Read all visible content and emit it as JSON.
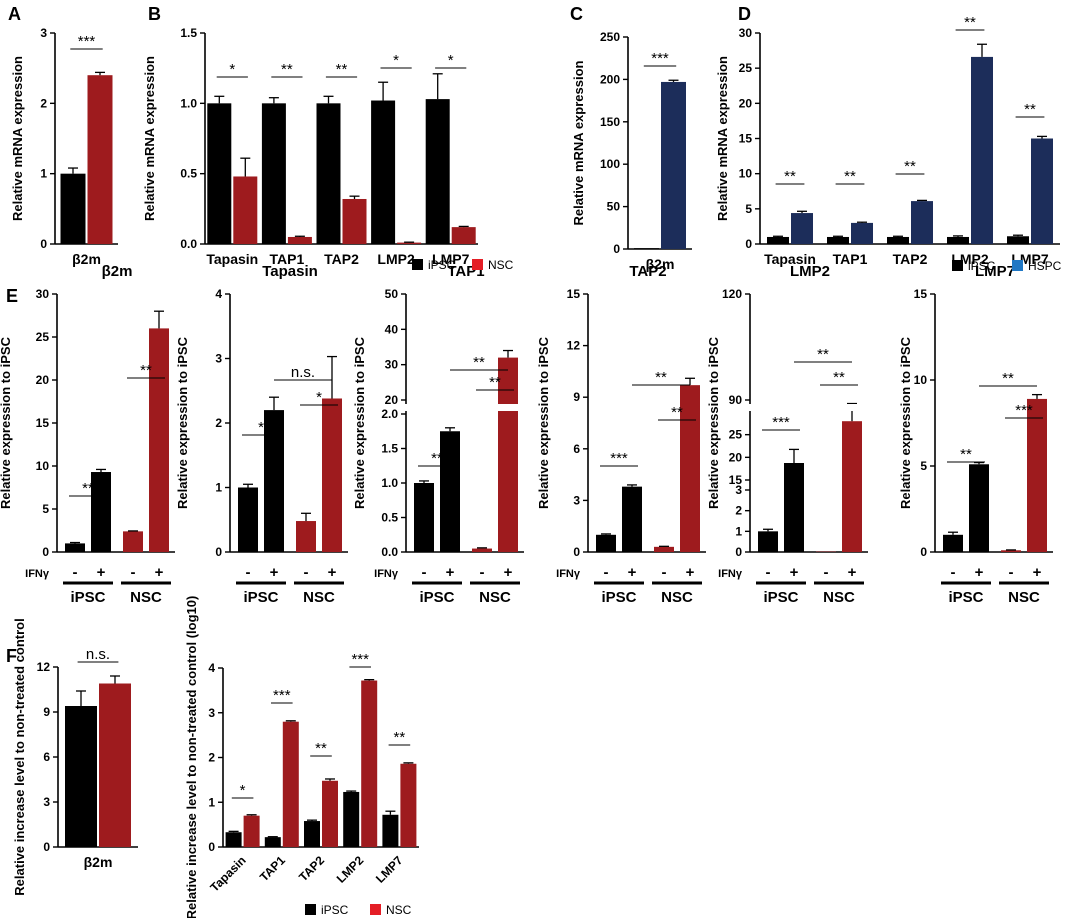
{
  "colors": {
    "ipsc": "#000000",
    "nsc": "#9e1b1e",
    "hspc": "#1c2d5a",
    "legend_nsc": "#e41e26",
    "legend_hspc": "#1f77c4"
  },
  "legend_row1": {
    "ipsc": "iPSC",
    "nsc": "NSC",
    "hspc": "HSPC"
  },
  "legend_row3": {
    "ipsc": "iPSC",
    "nsc": "NSC"
  },
  "chart_data": [
    {
      "id": "A",
      "panel_label": "A",
      "type": "bar",
      "ylabel": "Relative mRNA expression",
      "ylim": [
        0,
        3
      ],
      "yticks": [
        "0",
        "1",
        "2",
        "3"
      ],
      "categories": [
        "β2m"
      ],
      "series": [
        {
          "name": "iPSC",
          "values": [
            1.0
          ],
          "errors": [
            0.08
          ]
        },
        {
          "name": "NSC",
          "values": [
            2.4
          ],
          "errors": [
            0.04
          ]
        }
      ],
      "annotations": [
        "***"
      ]
    },
    {
      "id": "B",
      "panel_label": "B",
      "type": "bar",
      "ylabel": "Relative mRNA expression",
      "ylim": [
        0,
        1.5
      ],
      "yticks": [
        "0.0",
        "0.5",
        "1.0",
        "1.5"
      ],
      "categories": [
        "Tapasin",
        "TAP1",
        "TAP2",
        "LMP2",
        "LMP7"
      ],
      "series": [
        {
          "name": "iPSC",
          "values": [
            1.0,
            1.0,
            1.0,
            1.02,
            1.03
          ],
          "errors": [
            0.05,
            0.04,
            0.05,
            0.13,
            0.18
          ]
        },
        {
          "name": "NSC",
          "values": [
            0.48,
            0.05,
            0.32,
            0.01,
            0.12
          ],
          "errors": [
            0.13,
            0.005,
            0.02,
            0.003,
            0.005
          ]
        }
      ],
      "annotations": [
        "*",
        "**",
        "**",
        "*",
        "*"
      ]
    },
    {
      "id": "C",
      "panel_label": "C",
      "type": "bar",
      "ylabel": "Relative mRNA expression",
      "ylim": [
        0,
        250
      ],
      "yticks": [
        "0",
        "50",
        "100",
        "150",
        "200",
        "250"
      ],
      "categories": [
        "β2m"
      ],
      "series": [
        {
          "name": "iPSC",
          "values": [
            1
          ],
          "errors": [
            0
          ]
        },
        {
          "name": "HSPC",
          "values": [
            197
          ],
          "errors": [
            2
          ]
        }
      ],
      "annotations": [
        "***"
      ]
    },
    {
      "id": "D",
      "panel_label": "D",
      "type": "bar",
      "ylabel": "Relative mRNA expression",
      "ylim": [
        0,
        30
      ],
      "yticks": [
        "0",
        "5",
        "10",
        "15",
        "20",
        "25",
        "30"
      ],
      "categories": [
        "Tapasin",
        "TAP1",
        "TAP2",
        "LMP2",
        "LMP7"
      ],
      "series": [
        {
          "name": "iPSC",
          "values": [
            1,
            1,
            1,
            1,
            1.1
          ],
          "errors": [
            0.1,
            0.1,
            0.1,
            0.15,
            0.15
          ]
        },
        {
          "name": "HSPC",
          "values": [
            4.4,
            3.0,
            6.1,
            26.6,
            15.0
          ],
          "errors": [
            0.25,
            0.1,
            0.1,
            1.8,
            0.3
          ]
        }
      ],
      "annotations": [
        "**",
        "**",
        "**",
        "**",
        "**"
      ]
    },
    {
      "id": "E1",
      "panel_label": "E",
      "title": "β2m",
      "type": "bar",
      "ylabel": "Relative expression to iPSC",
      "ylim": [
        0,
        30
      ],
      "yticks": [
        "0",
        "5",
        "10",
        "15",
        "20",
        "25",
        "30"
      ],
      "ifn_label": "IFNγ",
      "signs": [
        "-",
        "+",
        "-",
        "+"
      ],
      "groups": [
        "iPSC",
        "NSC"
      ],
      "values": [
        1,
        9.3,
        2.4,
        26
      ],
      "errors": [
        0.1,
        0.3,
        0.05,
        2
      ],
      "annotations": [
        {
          "text": "**",
          "from": 0,
          "to": 1
        },
        {
          "text": "**",
          "from": 2,
          "to": 3
        }
      ]
    },
    {
      "id": "E2",
      "title": "Tapasin",
      "type": "bar",
      "ylabel": "Relative expression to iPSC",
      "ylim": [
        0,
        4
      ],
      "yticks": [
        "0",
        "1",
        "2",
        "3",
        "4"
      ],
      "ifn_label": "",
      "signs": [
        "-",
        "+",
        "-",
        "+"
      ],
      "groups": [
        "iPSC",
        "NSC"
      ],
      "values": [
        1,
        2.2,
        0.48,
        2.38
      ],
      "errors": [
        0.05,
        0.2,
        0.12,
        0.65
      ],
      "annotations": [
        {
          "text": "*",
          "from": 0,
          "to": 1
        },
        {
          "text": "*",
          "from": 2,
          "to": 3
        },
        {
          "text": "n.s.",
          "from": 1,
          "to": 3
        }
      ]
    },
    {
      "id": "E3",
      "title": "TAP1",
      "type": "bar",
      "ylabel": "Relative expression to iPSC",
      "broken_axis": true,
      "yticks": [
        "0.0",
        "0.5",
        "1.0",
        "1.5",
        "2.0",
        "20",
        "30",
        "40",
        "50"
      ],
      "ifn_label": "IFNγ",
      "signs": [
        "-",
        "+",
        "-",
        "+"
      ],
      "groups": [
        "iPSC",
        "NSC"
      ],
      "values": [
        1.0,
        1.75,
        0.05,
        32
      ],
      "errors": [
        0.03,
        0.05,
        0.01,
        2
      ],
      "annotations": [
        {
          "text": "**",
          "from": 0,
          "to": 1
        },
        {
          "text": "**",
          "from": 2,
          "to": 3
        },
        {
          "text": "**",
          "from": 1,
          "to": 3
        }
      ]
    },
    {
      "id": "E4",
      "title": "TAP2",
      "type": "bar",
      "ylabel": "Relative expression to iPSC",
      "ylim": [
        0,
        15
      ],
      "yticks": [
        "0",
        "3",
        "6",
        "9",
        "12",
        "15"
      ],
      "ifn_label": "IFNγ",
      "signs": [
        "-",
        "+",
        "-",
        "+"
      ],
      "groups": [
        "iPSC",
        "NSC"
      ],
      "values": [
        1,
        3.8,
        0.3,
        9.7
      ],
      "errors": [
        0.05,
        0.1,
        0.03,
        0.4
      ],
      "annotations": [
        {
          "text": "***",
          "from": 0,
          "to": 1
        },
        {
          "text": "**",
          "from": 2,
          "to": 3
        },
        {
          "text": "**",
          "from": 1,
          "to": 3
        }
      ]
    },
    {
      "id": "E5",
      "title": "LMP2",
      "type": "bar",
      "ylabel": "Relative expression to iPSC",
      "broken_axis": true,
      "yticks": [
        "0",
        "1",
        "2",
        "3",
        "15",
        "20",
        "25",
        "90",
        "120"
      ],
      "ifn_label": "IFNγ",
      "signs": [
        "-",
        "+",
        "-",
        "+"
      ],
      "groups": [
        "iPSC",
        "NSC"
      ],
      "values": [
        1,
        17.5,
        0.02,
        84
      ],
      "errors": [
        0.1,
        2,
        0,
        5
      ],
      "annotations": [
        {
          "text": "***",
          "from": 0,
          "to": 1
        },
        {
          "text": "**",
          "from": 2,
          "to": 3
        },
        {
          "text": "**",
          "from": 1,
          "to": 3
        }
      ]
    },
    {
      "id": "E6",
      "title": "LMP7",
      "type": "bar",
      "ylabel": "Relative expression to iPSC",
      "ylim": [
        0,
        15
      ],
      "yticks": [
        "0",
        "5",
        "10",
        "15"
      ],
      "ifn_label": "",
      "signs": [
        "-",
        "+",
        "-",
        "+"
      ],
      "groups": [
        "iPSC",
        "NSC"
      ],
      "values": [
        1,
        5.1,
        0.1,
        8.9
      ],
      "errors": [
        0.15,
        0.1,
        0.02,
        0.25
      ],
      "annotations": [
        {
          "text": "**",
          "from": 0,
          "to": 1
        },
        {
          "text": "***",
          "from": 2,
          "to": 3
        },
        {
          "text": "**",
          "from": 1,
          "to": 3
        }
      ]
    },
    {
      "id": "F1",
      "panel_label": "F",
      "type": "bar",
      "ylabel": "Relative increase level to non-treated control",
      "ylim": [
        0,
        12
      ],
      "yticks": [
        "0",
        "3",
        "6",
        "9",
        "12"
      ],
      "categories": [
        "β2m"
      ],
      "series": [
        {
          "name": "iPSC",
          "values": [
            9.4
          ],
          "errors": [
            1.0
          ]
        },
        {
          "name": "NSC",
          "values": [
            10.9
          ],
          "errors": [
            0.5
          ]
        }
      ],
      "annotations": [
        "n.s."
      ]
    },
    {
      "id": "F2",
      "type": "bar",
      "ylabel": "Relative increase level to non-treated control (log10)",
      "ylim": [
        0,
        4
      ],
      "yticks": [
        "0",
        "1",
        "2",
        "3",
        "4"
      ],
      "categories": [
        "Tapasin",
        "TAP1",
        "TAP2",
        "LMP2",
        "LMP7"
      ],
      "series": [
        {
          "name": "iPSC",
          "values": [
            0.33,
            0.22,
            0.58,
            1.23,
            0.72
          ],
          "errors": [
            0.02,
            0.01,
            0.02,
            0.02,
            0.08
          ]
        },
        {
          "name": "NSC",
          "values": [
            0.7,
            2.8,
            1.48,
            3.72,
            1.86
          ],
          "errors": [
            0.02,
            0.02,
            0.04,
            0.02,
            0.02
          ]
        }
      ],
      "annotations": [
        "*",
        "***",
        "**",
        "***",
        "**"
      ]
    }
  ]
}
